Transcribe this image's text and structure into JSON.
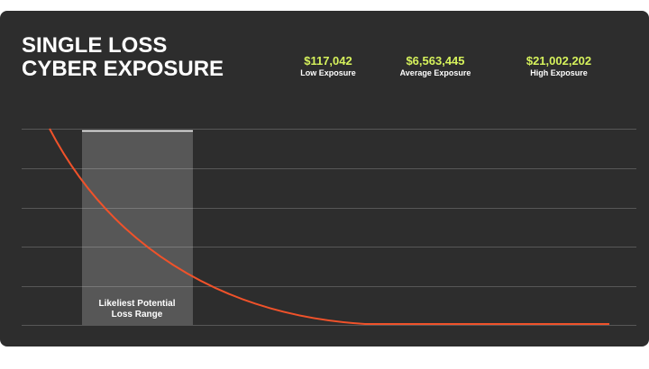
{
  "header": {
    "title_lines": [
      "SINGLE LOSS",
      "CYBER EXPOSURE"
    ]
  },
  "stats": [
    {
      "value": "$117,042",
      "label": "Low Exposure"
    },
    {
      "value": "$6,563,445",
      "label": "Average Exposure"
    },
    {
      "value": "$21,002,202",
      "label": "High Exposure"
    }
  ],
  "range": {
    "label_lines": [
      "Likeliest Potential",
      "Loss Range"
    ]
  }
}
